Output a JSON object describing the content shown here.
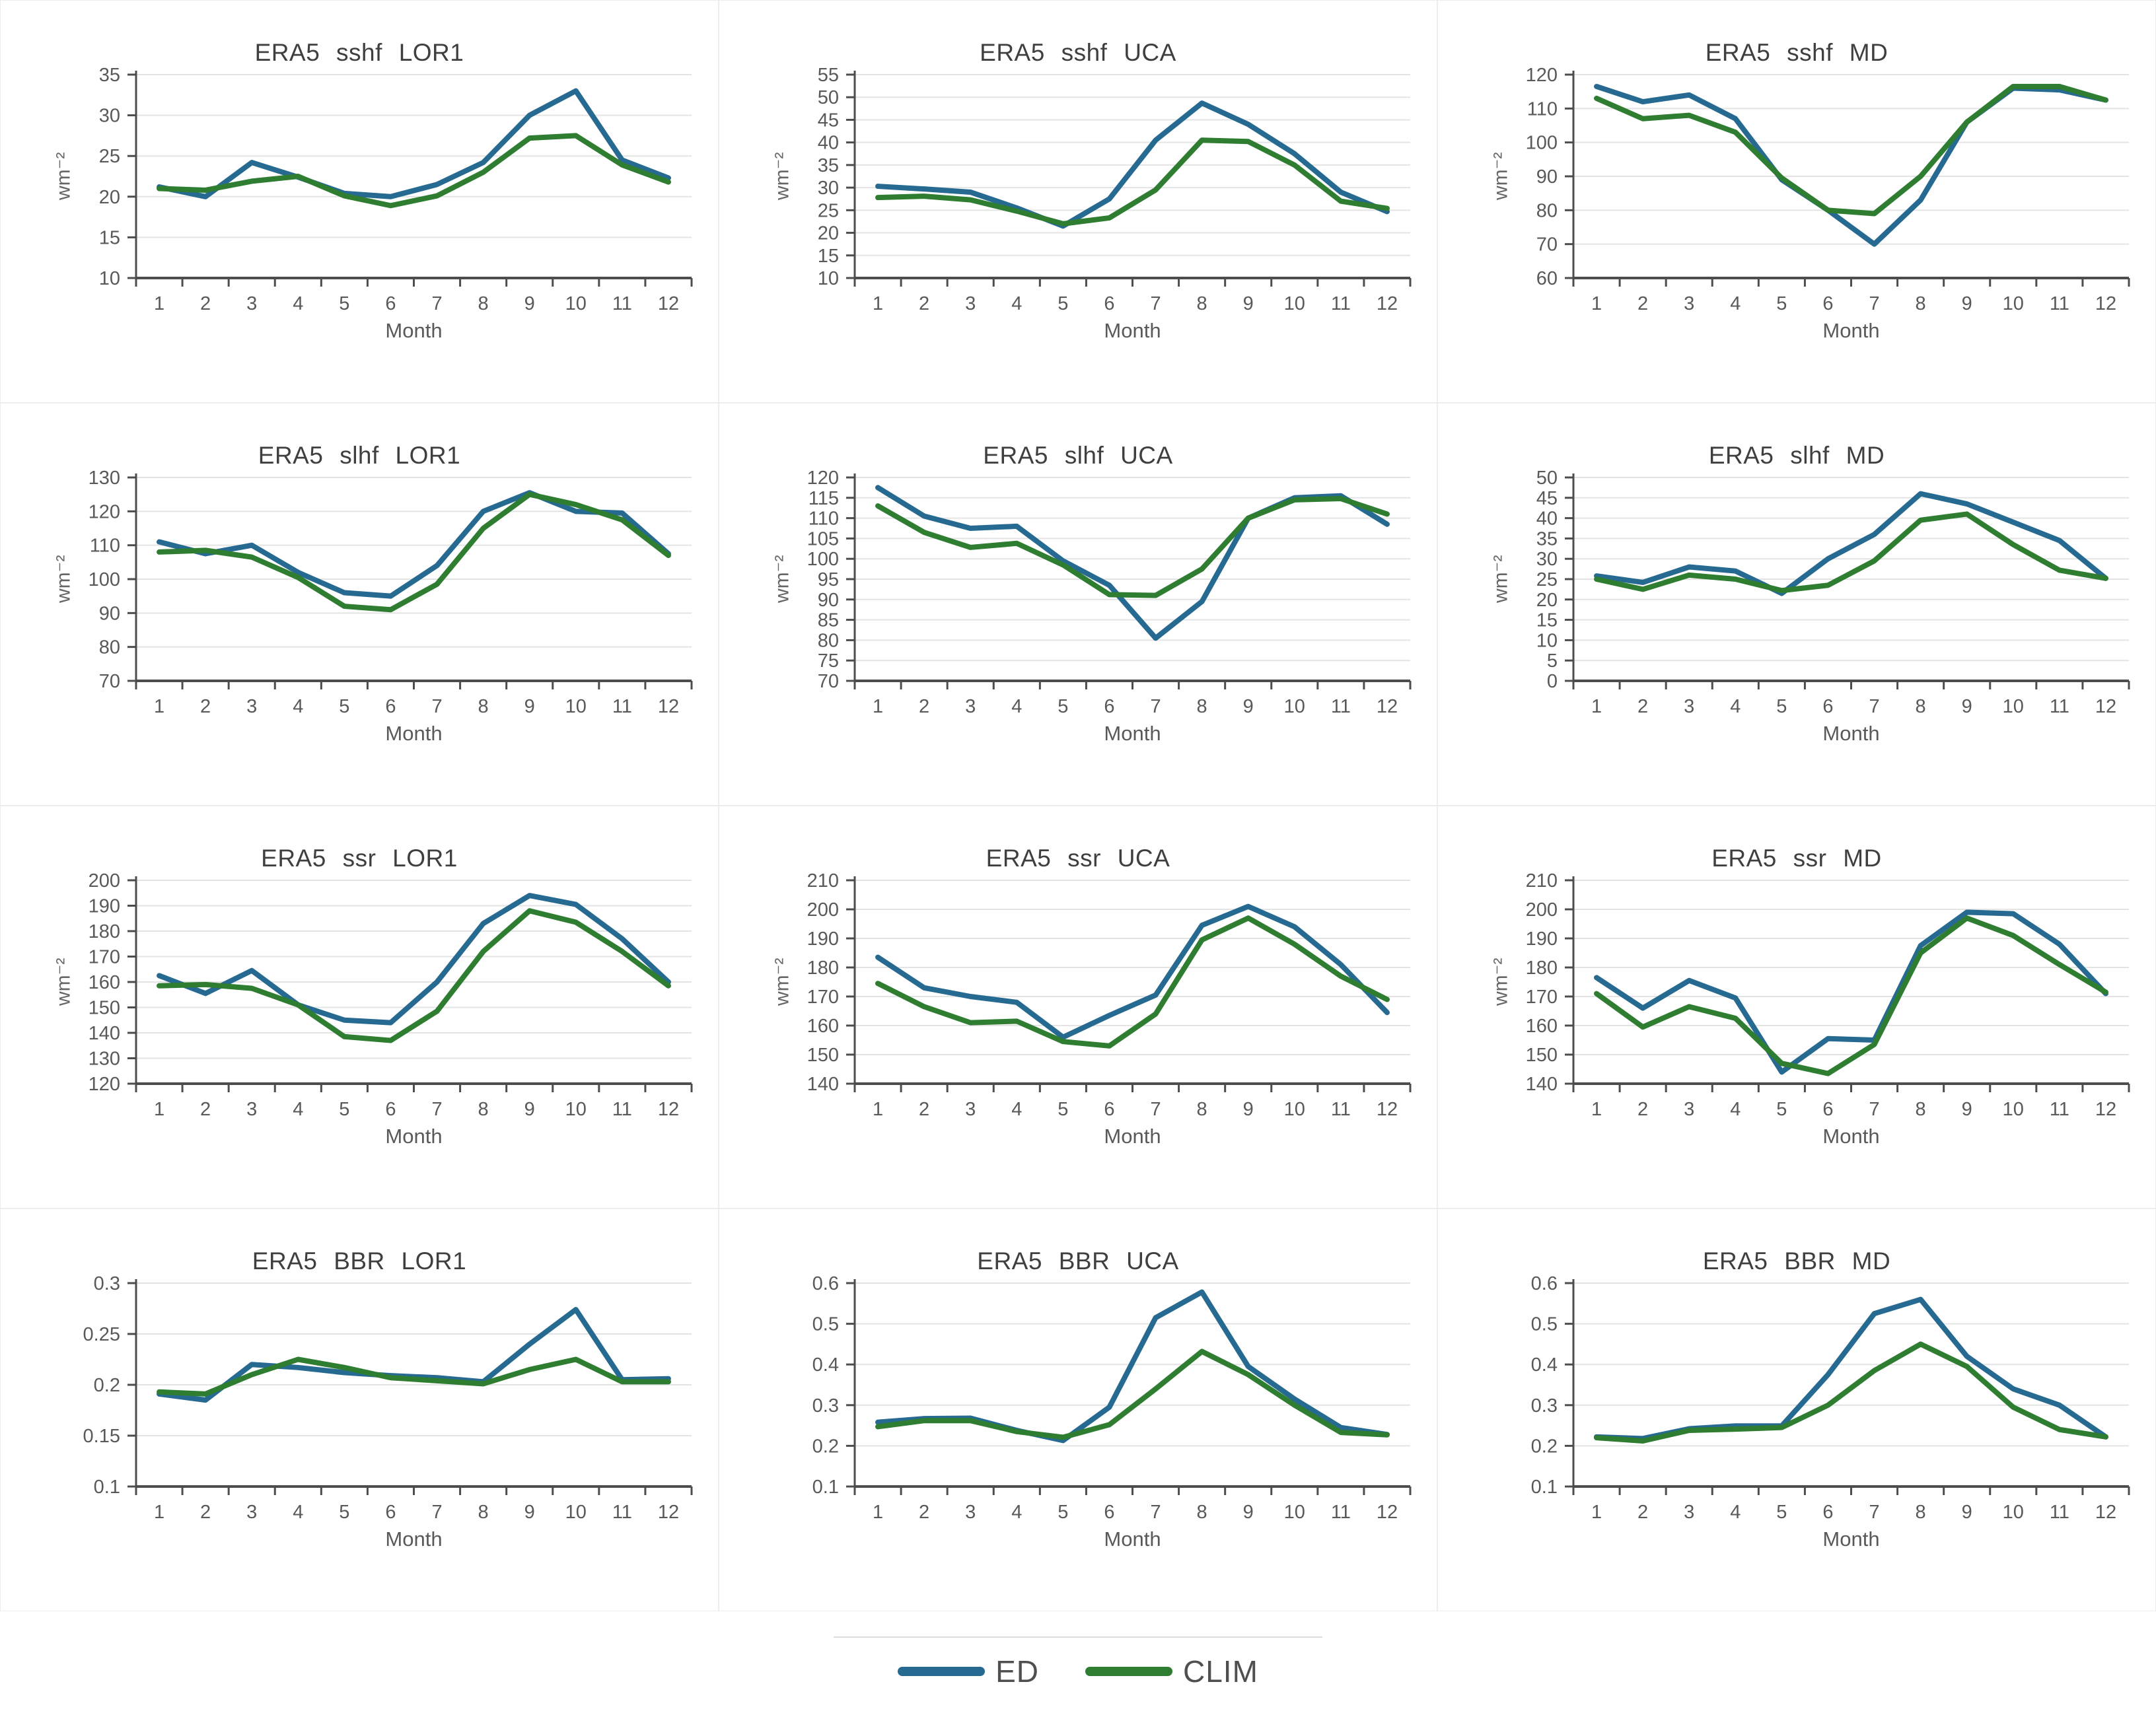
{
  "legend": {
    "items": [
      {
        "label": "ED",
        "color": "#276a91"
      },
      {
        "label": "CLIM",
        "color": "#2e7d31"
      }
    ]
  },
  "chart_data": [
    {
      "type": "line",
      "title": "ERA5 sshf LOR1",
      "xlabel": "Month",
      "ylabel": "wm⁻²",
      "x": [
        1,
        2,
        3,
        4,
        5,
        6,
        7,
        8,
        9,
        10,
        11,
        12
      ],
      "ylim": [
        10,
        35
      ],
      "ytick": 5,
      "grid": true,
      "series": [
        {
          "name": "ED",
          "values": [
            21.2,
            20.0,
            24.2,
            22.4,
            20.4,
            20.0,
            21.5,
            24.2,
            30.0,
            33.0,
            24.5,
            22.3
          ]
        },
        {
          "name": "CLIM",
          "values": [
            21.0,
            20.8,
            21.9,
            22.5,
            20.1,
            18.9,
            20.1,
            23.0,
            27.2,
            27.5,
            23.9,
            21.8
          ]
        }
      ]
    },
    {
      "type": "line",
      "title": "ERA5 sshf UCA",
      "xlabel": "Month",
      "ylabel": "wm⁻²",
      "x": [
        1,
        2,
        3,
        4,
        5,
        6,
        7,
        8,
        9,
        10,
        11,
        12
      ],
      "ylim": [
        10,
        55
      ],
      "ytick": 5,
      "grid": true,
      "series": [
        {
          "name": "ED",
          "values": [
            30.3,
            29.7,
            29.0,
            25.5,
            21.5,
            27.5,
            40.5,
            48.7,
            44.0,
            37.5,
            29.0,
            24.7
          ]
        },
        {
          "name": "CLIM",
          "values": [
            27.8,
            28.1,
            27.3,
            24.8,
            22.0,
            23.3,
            29.5,
            40.5,
            40.2,
            35.0,
            27.0,
            25.4
          ]
        }
      ]
    },
    {
      "type": "line",
      "title": "ERA5 sshf MD",
      "xlabel": "Month",
      "ylabel": "wm⁻²",
      "x": [
        1,
        2,
        3,
        4,
        5,
        6,
        7,
        8,
        9,
        10,
        11,
        12
      ],
      "ylim": [
        60,
        120
      ],
      "ytick": 10,
      "grid": true,
      "series": [
        {
          "name": "ED",
          "values": [
            116.5,
            112,
            114,
            107,
            89,
            80,
            70,
            83,
            106,
            116,
            115.5,
            112.5
          ]
        },
        {
          "name": "CLIM",
          "values": [
            113,
            107,
            108,
            103,
            89.5,
            80,
            79,
            90,
            106,
            116.5,
            116.5,
            112.5
          ]
        }
      ]
    },
    {
      "type": "line",
      "title": "ERA5 slhf LOR1",
      "xlabel": "Month",
      "ylabel": "wm⁻²",
      "x": [
        1,
        2,
        3,
        4,
        5,
        6,
        7,
        8,
        9,
        10,
        11,
        12
      ],
      "ylim": [
        70,
        130
      ],
      "ytick": 10,
      "grid": true,
      "series": [
        {
          "name": "ED",
          "values": [
            111,
            107.5,
            110,
            102,
            96,
            95,
            104,
            120,
            125.5,
            120,
            119.5,
            107.5
          ]
        },
        {
          "name": "CLIM",
          "values": [
            108,
            108.5,
            106.5,
            100.5,
            92,
            91,
            98.5,
            115,
            125,
            122,
            117.5,
            107
          ]
        }
      ]
    },
    {
      "type": "line",
      "title": "ERA5 slhf UCA",
      "xlabel": "Month",
      "ylabel": "wm⁻²",
      "x": [
        1,
        2,
        3,
        4,
        5,
        6,
        7,
        8,
        9,
        10,
        11,
        12
      ],
      "ylim": [
        70,
        120
      ],
      "ytick": 5,
      "grid": true,
      "series": [
        {
          "name": "ED",
          "values": [
            117.5,
            110.5,
            107.5,
            108,
            99.5,
            93.5,
            80.5,
            89.5,
            110,
            115,
            115.5,
            108.5
          ]
        },
        {
          "name": "CLIM",
          "values": [
            113,
            106.5,
            102.8,
            103.8,
            98.5,
            91.2,
            91,
            97.5,
            110,
            114.5,
            114.8,
            111
          ]
        }
      ]
    },
    {
      "type": "line",
      "title": "ERA5 slhf MD",
      "xlabel": "Month",
      "ylabel": "wm⁻²",
      "x": [
        1,
        2,
        3,
        4,
        5,
        6,
        7,
        8,
        9,
        10,
        11,
        12
      ],
      "ylim": [
        0,
        50
      ],
      "ytick": 5,
      "grid": true,
      "series": [
        {
          "name": "ED",
          "values": [
            25.8,
            24.2,
            28,
            27,
            21.5,
            30,
            36,
            46,
            43.5,
            39,
            34.5,
            25.2
          ]
        },
        {
          "name": "CLIM",
          "values": [
            25,
            22.5,
            26,
            25,
            22.2,
            23.5,
            29.5,
            39.5,
            41,
            33.5,
            27.2,
            25.2
          ]
        }
      ]
    },
    {
      "type": "line",
      "title": "ERA5 ssr LOR1",
      "xlabel": "Month",
      "ylabel": "wm⁻²",
      "x": [
        1,
        2,
        3,
        4,
        5,
        6,
        7,
        8,
        9,
        10,
        11,
        12
      ],
      "ylim": [
        120,
        200
      ],
      "ytick": 10,
      "grid": true,
      "series": [
        {
          "name": "ED",
          "values": [
            162.5,
            155.5,
            164.5,
            151,
            145,
            144,
            160,
            183,
            194,
            190.5,
            177,
            160
          ]
        },
        {
          "name": "CLIM",
          "values": [
            158.5,
            159,
            157.5,
            151,
            138.5,
            137,
            148.5,
            172,
            188,
            183.5,
            172,
            158.5
          ]
        }
      ]
    },
    {
      "type": "line",
      "title": "ERA5 ssr UCA",
      "xlabel": "Month",
      "ylabel": "wm⁻²",
      "x": [
        1,
        2,
        3,
        4,
        5,
        6,
        7,
        8,
        9,
        10,
        11,
        12
      ],
      "ylim": [
        140,
        210
      ],
      "ytick": 10,
      "grid": true,
      "series": [
        {
          "name": "ED",
          "values": [
            183.5,
            173,
            170,
            168,
            156,
            163.5,
            170.5,
            194.5,
            201,
            194,
            181,
            164.5
          ]
        },
        {
          "name": "CLIM",
          "values": [
            174.5,
            166.5,
            161,
            161.5,
            154.5,
            153,
            164,
            189.5,
            197,
            188,
            177,
            169
          ]
        }
      ]
    },
    {
      "type": "line",
      "title": "ERA5 ssr MD",
      "xlabel": "Month",
      "ylabel": "wm⁻²",
      "x": [
        1,
        2,
        3,
        4,
        5,
        6,
        7,
        8,
        9,
        10,
        11,
        12
      ],
      "ylim": [
        140,
        210
      ],
      "ytick": 10,
      "grid": true,
      "series": [
        {
          "name": "ED",
          "values": [
            176.5,
            166,
            175.5,
            169.5,
            144,
            155.5,
            155,
            187.5,
            199,
            198.5,
            188,
            171
          ]
        },
        {
          "name": "CLIM",
          "values": [
            171,
            159.5,
            166.5,
            162.5,
            147,
            143.5,
            153.5,
            185,
            197,
            191,
            181,
            171.5
          ]
        }
      ]
    },
    {
      "type": "line",
      "title": "ERA5 BBR LOR1",
      "xlabel": "Month",
      "ylabel": "",
      "x": [
        1,
        2,
        3,
        4,
        5,
        6,
        7,
        8,
        9,
        10,
        11,
        12
      ],
      "ylim": [
        0.1,
        0.3
      ],
      "ytick": 0.05,
      "grid": true,
      "series": [
        {
          "name": "ED",
          "values": [
            0.191,
            0.185,
            0.22,
            0.217,
            0.212,
            0.209,
            0.207,
            0.203,
            0.24,
            0.274,
            0.205,
            0.206
          ]
        },
        {
          "name": "CLIM",
          "values": [
            0.193,
            0.191,
            0.21,
            0.225,
            0.217,
            0.207,
            0.204,
            0.201,
            0.215,
            0.225,
            0.203,
            0.203
          ]
        }
      ]
    },
    {
      "type": "line",
      "title": "ERA5 BBR UCA",
      "xlabel": "Month",
      "ylabel": "",
      "x": [
        1,
        2,
        3,
        4,
        5,
        6,
        7,
        8,
        9,
        10,
        11,
        12
      ],
      "ylim": [
        0.1,
        0.6
      ],
      "ytick": 0.1,
      "grid": true,
      "series": [
        {
          "name": "ED",
          "values": [
            0.258,
            0.267,
            0.268,
            0.238,
            0.213,
            0.295,
            0.515,
            0.578,
            0.395,
            0.315,
            0.245,
            0.228
          ]
        },
        {
          "name": "CLIM",
          "values": [
            0.247,
            0.262,
            0.262,
            0.235,
            0.221,
            0.252,
            0.34,
            0.432,
            0.375,
            0.3,
            0.233,
            0.227
          ]
        }
      ]
    },
    {
      "type": "line",
      "title": "ERA5 BBR MD",
      "xlabel": "Month",
      "ylabel": "",
      "x": [
        1,
        2,
        3,
        4,
        5,
        6,
        7,
        8,
        9,
        10,
        11,
        12
      ],
      "ylim": [
        0.1,
        0.6
      ],
      "ytick": 0.1,
      "grid": true,
      "series": [
        {
          "name": "ED",
          "values": [
            0.222,
            0.218,
            0.242,
            0.249,
            0.249,
            0.375,
            0.525,
            0.56,
            0.42,
            0.34,
            0.3,
            0.222
          ]
        },
        {
          "name": "CLIM",
          "values": [
            0.22,
            0.212,
            0.238,
            0.241,
            0.245,
            0.3,
            0.385,
            0.45,
            0.395,
            0.295,
            0.24,
            0.222
          ]
        }
      ]
    }
  ]
}
